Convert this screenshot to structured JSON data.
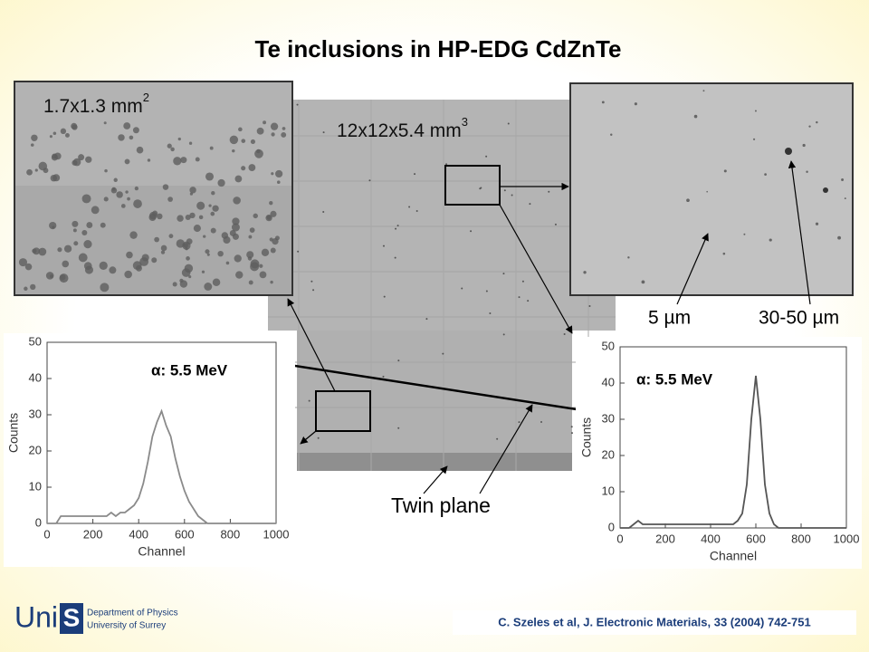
{
  "title": "Te inclusions in HP-EDG CdZnTe",
  "micrographs": {
    "left": {
      "label": "1.7x1.3 mm",
      "label_sup": "2"
    },
    "center": {
      "label": "12x12x5.4 mm",
      "label_sup": "3"
    },
    "right": {
      "labels": [
        "5 µm",
        "30-50 µm"
      ]
    }
  },
  "twin_plane": "Twin plane",
  "charts": [
    {
      "type": "line",
      "annotation": "α: 5.5 MeV",
      "x_label": "Channel",
      "y_label": "Counts",
      "color": "#8a8a8a",
      "xlim": [
        0,
        1000
      ],
      "ylim": [
        0,
        50
      ],
      "xticks": [
        0,
        200,
        400,
        600,
        800,
        1000
      ],
      "yticks": [
        0,
        10,
        20,
        30,
        40,
        50
      ],
      "x": [
        0,
        20,
        40,
        60,
        80,
        100,
        120,
        140,
        160,
        180,
        200,
        220,
        240,
        260,
        280,
        300,
        320,
        340,
        360,
        380,
        400,
        420,
        440,
        460,
        480,
        500,
        520,
        540,
        560,
        580,
        600,
        620,
        640,
        660,
        680,
        700,
        720,
        740,
        760,
        780,
        800,
        820,
        840,
        860,
        880,
        900,
        920,
        940,
        960,
        980,
        1000
      ],
      "values": [
        0,
        0,
        0,
        2,
        2,
        2,
        2,
        2,
        2,
        2,
        2,
        2,
        2,
        2,
        3,
        2,
        3,
        3,
        4,
        5,
        7,
        11,
        17,
        24,
        28,
        31,
        27,
        24,
        18,
        13,
        9,
        6,
        4,
        2,
        1,
        0,
        0,
        0,
        0,
        0,
        0,
        0,
        0,
        0,
        0,
        0,
        0,
        0,
        0,
        0,
        0
      ]
    },
    {
      "type": "line",
      "annotation": "α: 5.5 MeV",
      "x_label": "Channel",
      "y_label": "Counts",
      "color": "#555555",
      "xlim": [
        0,
        1000
      ],
      "ylim": [
        0,
        50
      ],
      "xticks": [
        0,
        200,
        400,
        600,
        800,
        1000
      ],
      "yticks": [
        0,
        10,
        20,
        30,
        40,
        50
      ],
      "x": [
        0,
        20,
        40,
        60,
        80,
        100,
        120,
        140,
        160,
        180,
        200,
        220,
        240,
        260,
        280,
        300,
        320,
        340,
        360,
        380,
        400,
        420,
        440,
        460,
        480,
        500,
        520,
        540,
        560,
        580,
        600,
        620,
        640,
        660,
        680,
        700,
        720,
        740,
        760,
        780,
        800,
        820,
        840,
        860,
        880,
        900,
        920,
        940,
        960,
        980,
        1000
      ],
      "values": [
        0,
        0,
        0,
        1,
        2,
        1,
        1,
        1,
        1,
        1,
        1,
        1,
        1,
        1,
        1,
        1,
        1,
        1,
        1,
        1,
        1,
        1,
        1,
        1,
        1,
        1,
        2,
        4,
        12,
        30,
        42,
        30,
        12,
        4,
        1,
        0,
        0,
        0,
        0,
        0,
        0,
        0,
        0,
        0,
        0,
        0,
        0,
        0,
        0,
        0,
        0
      ]
    }
  ],
  "logo": {
    "uni": "Uni",
    "s": "S",
    "line1": "Department of Physics",
    "line2": "University of Surrey"
  },
  "citation": "C. Szeles et al, J. Electronic Materials, 33 (2004) 742-751"
}
